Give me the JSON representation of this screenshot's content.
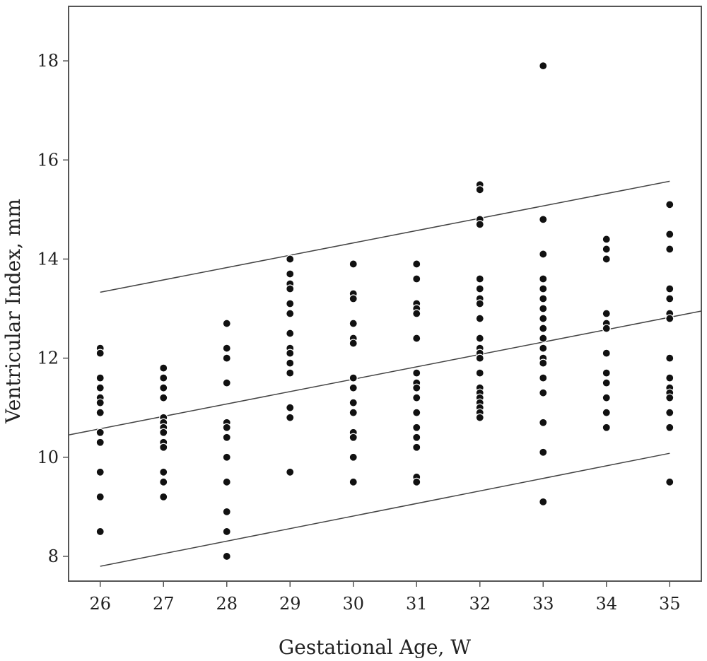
{
  "chart_data": {
    "type": "scatter",
    "title": "",
    "xlabel": "Gestational Age, W",
    "ylabel": "Ventricular Index, mm",
    "xlim": [
      25.5,
      35.5
    ],
    "ylim": [
      7.5,
      19.1
    ],
    "x_ticks": [
      26,
      27,
      28,
      29,
      30,
      31,
      32,
      33,
      34,
      35
    ],
    "y_ticks": [
      8,
      10,
      12,
      14,
      16,
      18
    ],
    "grid": false,
    "legend": "none",
    "points": [
      {
        "x": 26,
        "values": [
          12.2,
          12.1,
          11.6,
          11.4,
          11.2,
          11.1,
          10.9,
          10.5,
          10.3,
          9.7,
          9.2,
          8.5
        ]
      },
      {
        "x": 27,
        "values": [
          11.8,
          11.6,
          11.4,
          11.2,
          10.8,
          10.7,
          10.6,
          10.5,
          10.3,
          10.2,
          9.7,
          9.5,
          9.2
        ]
      },
      {
        "x": 28,
        "values": [
          12.7,
          12.2,
          12.0,
          11.5,
          10.7,
          10.6,
          10.4,
          10.0,
          9.5,
          8.9,
          8.5,
          8.0
        ]
      },
      {
        "x": 29,
        "values": [
          14.0,
          13.7,
          13.5,
          13.4,
          13.1,
          12.9,
          12.5,
          12.2,
          12.1,
          11.9,
          11.7,
          11.0,
          10.8,
          9.7
        ]
      },
      {
        "x": 30,
        "values": [
          13.9,
          13.3,
          13.2,
          12.7,
          12.4,
          12.3,
          11.6,
          11.4,
          11.1,
          10.9,
          10.5,
          10.4,
          10.0,
          9.5
        ]
      },
      {
        "x": 31,
        "values": [
          13.9,
          13.6,
          13.1,
          13.0,
          12.9,
          12.4,
          11.7,
          11.5,
          11.4,
          11.2,
          10.9,
          10.6,
          10.4,
          10.2,
          9.6,
          9.5
        ]
      },
      {
        "x": 32,
        "values": [
          15.5,
          15.4,
          14.8,
          14.7,
          13.6,
          13.4,
          13.2,
          13.1,
          12.8,
          12.4,
          12.2,
          12.1,
          12.0,
          11.7,
          11.4,
          11.3,
          11.2,
          11.1,
          11.0,
          10.9,
          10.8
        ]
      },
      {
        "x": 33,
        "values": [
          17.9,
          14.8,
          14.1,
          13.6,
          13.4,
          13.2,
          13.0,
          12.8,
          12.6,
          12.4,
          12.2,
          12.0,
          11.9,
          11.6,
          11.3,
          10.7,
          10.1,
          9.1
        ]
      },
      {
        "x": 34,
        "values": [
          14.4,
          14.2,
          14.0,
          12.9,
          12.7,
          12.6,
          12.1,
          11.7,
          11.5,
          11.2,
          10.9,
          10.6
        ]
      },
      {
        "x": 35,
        "values": [
          15.1,
          14.5,
          14.2,
          13.4,
          13.2,
          12.9,
          12.8,
          12.0,
          11.6,
          11.4,
          11.3,
          11.2,
          10.9,
          10.6,
          9.5
        ]
      }
    ],
    "lines": [
      {
        "x": [
          26,
          35
        ],
        "y": [
          13.33,
          15.57
        ]
      },
      {
        "x": [
          25.5,
          35.5
        ],
        "y": [
          10.45,
          12.95
        ]
      },
      {
        "x": [
          26,
          35
        ],
        "y": [
          7.8,
          10.08
        ]
      }
    ]
  }
}
